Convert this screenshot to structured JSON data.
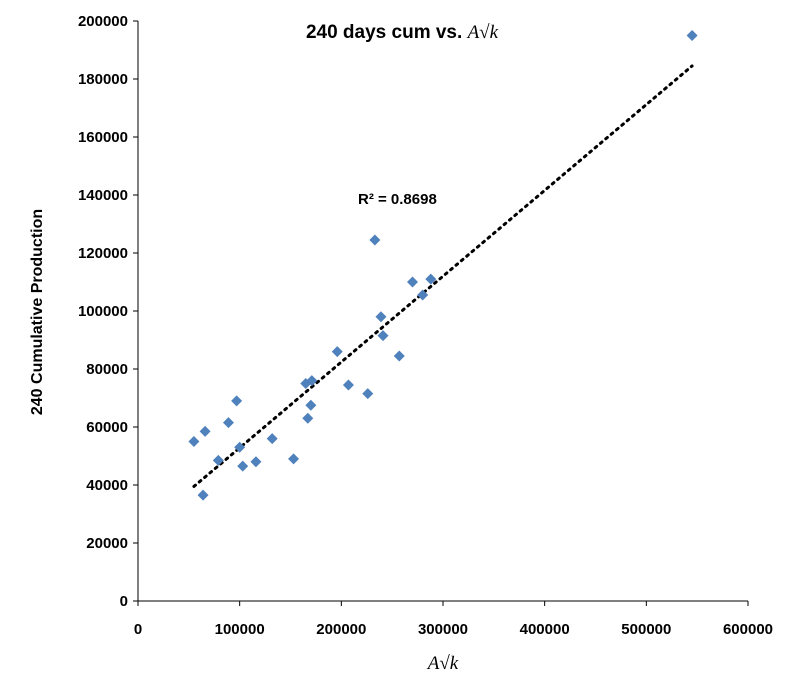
{
  "chart_data": {
    "type": "scatter",
    "title_prefix": "240 days cum vs. ",
    "title_math": "A√k",
    "xlabel": "A√k",
    "ylabel": "240 Cumulative Production",
    "xlim": [
      0,
      600000
    ],
    "ylim": [
      0,
      200000
    ],
    "x_ticks": [
      "0",
      "100000",
      "200000",
      "300000",
      "400000",
      "500000",
      "600000"
    ],
    "y_ticks": [
      "0",
      "20000",
      "40000",
      "60000",
      "80000",
      "100000",
      "120000",
      "140000",
      "160000",
      "180000",
      "200000"
    ],
    "grid": false,
    "marker_color": "#4f81bd",
    "trendline": {
      "type": "linear",
      "style": "dotted",
      "x_start": 55000,
      "y_start": 39500,
      "x_end": 545000,
      "y_end": 184500,
      "label": "R² = 0.8698"
    },
    "points": [
      {
        "x": 55000,
        "y": 55000
      },
      {
        "x": 64000,
        "y": 36500
      },
      {
        "x": 66000,
        "y": 58500
      },
      {
        "x": 79000,
        "y": 48500
      },
      {
        "x": 89000,
        "y": 61500
      },
      {
        "x": 97000,
        "y": 69000
      },
      {
        "x": 100000,
        "y": 53000
      },
      {
        "x": 103000,
        "y": 46500
      },
      {
        "x": 116000,
        "y": 48000
      },
      {
        "x": 132000,
        "y": 56000
      },
      {
        "x": 153000,
        "y": 49000
      },
      {
        "x": 165000,
        "y": 75000
      },
      {
        "x": 167000,
        "y": 63000
      },
      {
        "x": 170000,
        "y": 67500
      },
      {
        "x": 171000,
        "y": 76000
      },
      {
        "x": 196000,
        "y": 86000
      },
      {
        "x": 207000,
        "y": 74500
      },
      {
        "x": 226000,
        "y": 71500
      },
      {
        "x": 233000,
        "y": 124500
      },
      {
        "x": 239000,
        "y": 98000
      },
      {
        "x": 241000,
        "y": 91500
      },
      {
        "x": 257000,
        "y": 84500
      },
      {
        "x": 270000,
        "y": 110000
      },
      {
        "x": 280000,
        "y": 105500
      },
      {
        "x": 288000,
        "y": 111000
      },
      {
        "x": 545000,
        "y": 195000
      }
    ]
  }
}
